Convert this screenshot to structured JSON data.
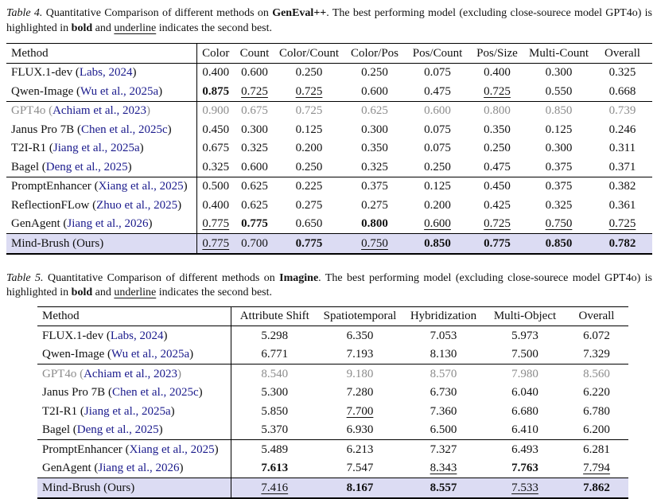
{
  "colors": {
    "citation_blue": "#1a1a8c",
    "muted_gray": "#8c8c8c",
    "highlight_row_bg": "#dcdcf3"
  },
  "table4": {
    "caption": [
      {
        "t": "Table 4.",
        "style": "i"
      },
      {
        "t": " Quantitative Comparison of different methods on ",
        "style": ""
      },
      {
        "t": "GenEval++",
        "style": "b"
      },
      {
        "t": ". The best performing model (excluding close-sourece model GPT4o) is highlighted in ",
        "style": ""
      },
      {
        "t": "bold",
        "style": "b"
      },
      {
        "t": " and ",
        "style": ""
      },
      {
        "t": "underline",
        "style": "u"
      },
      {
        "t": " indicates the second best.",
        "style": ""
      }
    ],
    "method_header": "Method",
    "columns": [
      "Color",
      "Count",
      "Color/Count",
      "Color/Pos",
      "Pos/Count",
      "Pos/Size",
      "Multi-Count",
      "Overall"
    ],
    "cite_wrap": [
      " (",
      ")"
    ],
    "groups": [
      [
        {
          "name": "FLUX.1-dev",
          "cite": "Labs, 2024",
          "gray": false,
          "highlight": false,
          "cells": [
            {
              "v": "0.400",
              "s": ""
            },
            {
              "v": "0.600",
              "s": ""
            },
            {
              "v": "0.250",
              "s": ""
            },
            {
              "v": "0.250",
              "s": ""
            },
            {
              "v": "0.075",
              "s": ""
            },
            {
              "v": "0.400",
              "s": ""
            },
            {
              "v": "0.300",
              "s": ""
            },
            {
              "v": "0.325",
              "s": ""
            }
          ]
        },
        {
          "name": "Qwen-Image",
          "cite": "Wu et al., 2025a",
          "gray": false,
          "highlight": false,
          "cells": [
            {
              "v": "0.875",
              "s": "b"
            },
            {
              "v": "0.725",
              "s": "u"
            },
            {
              "v": "0.725",
              "s": "u"
            },
            {
              "v": "0.600",
              "s": ""
            },
            {
              "v": "0.475",
              "s": ""
            },
            {
              "v": "0.725",
              "s": "u"
            },
            {
              "v": "0.550",
              "s": ""
            },
            {
              "v": "0.668",
              "s": ""
            }
          ]
        }
      ],
      [
        {
          "name": "GPT4o",
          "cite": "Achiam et al., 2023",
          "gray": true,
          "highlight": false,
          "cells": [
            {
              "v": "0.900",
              "s": ""
            },
            {
              "v": "0.675",
              "s": ""
            },
            {
              "v": "0.725",
              "s": ""
            },
            {
              "v": "0.625",
              "s": ""
            },
            {
              "v": "0.600",
              "s": ""
            },
            {
              "v": "0.800",
              "s": ""
            },
            {
              "v": "0.850",
              "s": ""
            },
            {
              "v": "0.739",
              "s": ""
            }
          ]
        },
        {
          "name": "Janus Pro 7B",
          "cite": "Chen et al., 2025c",
          "gray": false,
          "highlight": false,
          "cells": [
            {
              "v": "0.450",
              "s": ""
            },
            {
              "v": "0.300",
              "s": ""
            },
            {
              "v": "0.125",
              "s": ""
            },
            {
              "v": "0.300",
              "s": ""
            },
            {
              "v": "0.075",
              "s": ""
            },
            {
              "v": "0.350",
              "s": ""
            },
            {
              "v": "0.125",
              "s": ""
            },
            {
              "v": "0.246",
              "s": ""
            }
          ]
        },
        {
          "name": "T2I-R1",
          "cite": "Jiang et al., 2025a",
          "gray": false,
          "highlight": false,
          "cells": [
            {
              "v": "0.675",
              "s": ""
            },
            {
              "v": "0.325",
              "s": ""
            },
            {
              "v": "0.200",
              "s": ""
            },
            {
              "v": "0.350",
              "s": ""
            },
            {
              "v": "0.075",
              "s": ""
            },
            {
              "v": "0.250",
              "s": ""
            },
            {
              "v": "0.300",
              "s": ""
            },
            {
              "v": "0.311",
              "s": ""
            }
          ]
        },
        {
          "name": "Bagel",
          "cite": "Deng et al., 2025",
          "gray": false,
          "highlight": false,
          "cells": [
            {
              "v": "0.325",
              "s": ""
            },
            {
              "v": "0.600",
              "s": ""
            },
            {
              "v": "0.250",
              "s": ""
            },
            {
              "v": "0.325",
              "s": ""
            },
            {
              "v": "0.250",
              "s": ""
            },
            {
              "v": "0.475",
              "s": ""
            },
            {
              "v": "0.375",
              "s": ""
            },
            {
              "v": "0.371",
              "s": ""
            }
          ]
        }
      ],
      [
        {
          "name": "PromptEnhancer",
          "cite": "Xiang et al., 2025",
          "gray": false,
          "highlight": false,
          "cells": [
            {
              "v": "0.500",
              "s": ""
            },
            {
              "v": "0.625",
              "s": ""
            },
            {
              "v": "0.225",
              "s": ""
            },
            {
              "v": "0.375",
              "s": ""
            },
            {
              "v": "0.125",
              "s": ""
            },
            {
              "v": "0.450",
              "s": ""
            },
            {
              "v": "0.375",
              "s": ""
            },
            {
              "v": "0.382",
              "s": ""
            }
          ]
        },
        {
          "name": "ReflectionFLow",
          "cite": "Zhuo et al., 2025",
          "gray": false,
          "highlight": false,
          "cells": [
            {
              "v": "0.400",
              "s": ""
            },
            {
              "v": "0.625",
              "s": ""
            },
            {
              "v": "0.275",
              "s": ""
            },
            {
              "v": "0.275",
              "s": ""
            },
            {
              "v": "0.200",
              "s": ""
            },
            {
              "v": "0.425",
              "s": ""
            },
            {
              "v": "0.325",
              "s": ""
            },
            {
              "v": "0.361",
              "s": ""
            }
          ]
        },
        {
          "name": "GenAgent",
          "cite": "Jiang et al., 2026",
          "gray": false,
          "highlight": false,
          "cells": [
            {
              "v": "0.775",
              "s": "u"
            },
            {
              "v": "0.775",
              "s": "b"
            },
            {
              "v": "0.650",
              "s": ""
            },
            {
              "v": "0.800",
              "s": "b"
            },
            {
              "v": "0.600",
              "s": "u"
            },
            {
              "v": "0.725",
              "s": "u"
            },
            {
              "v": "0.750",
              "s": "u"
            },
            {
              "v": "0.725",
              "s": "u"
            }
          ]
        }
      ],
      [
        {
          "name": "Mind-Brush (Ours)",
          "cite": null,
          "gray": false,
          "highlight": true,
          "cells": [
            {
              "v": "0.775",
              "s": "u"
            },
            {
              "v": "0.700",
              "s": ""
            },
            {
              "v": "0.775",
              "s": "b"
            },
            {
              "v": "0.750",
              "s": "u"
            },
            {
              "v": "0.850",
              "s": "b"
            },
            {
              "v": "0.775",
              "s": "b"
            },
            {
              "v": "0.850",
              "s": "b"
            },
            {
              "v": "0.782",
              "s": "b"
            }
          ]
        }
      ]
    ]
  },
  "table5": {
    "caption": [
      {
        "t": "Table 5.",
        "style": "i"
      },
      {
        "t": " Quantitative Comparison of different methods on ",
        "style": ""
      },
      {
        "t": "Imagine",
        "style": "b"
      },
      {
        "t": ". The best performing model (excluding close-sourece model GPT4o) is highlighted in ",
        "style": ""
      },
      {
        "t": "bold",
        "style": "b"
      },
      {
        "t": " and ",
        "style": ""
      },
      {
        "t": "underline",
        "style": "u"
      },
      {
        "t": " indicates the second best.",
        "style": ""
      }
    ],
    "method_header": "Method",
    "columns": [
      "Attribute Shift",
      "Spatiotemporal",
      "Hybridization",
      "Multi-Object",
      "Overall"
    ],
    "cite_wrap": [
      " (",
      ")"
    ],
    "groups": [
      [
        {
          "name": "FLUX.1-dev",
          "cite": "Labs, 2024",
          "gray": false,
          "highlight": false,
          "cells": [
            {
              "v": "5.298",
              "s": ""
            },
            {
              "v": "6.350",
              "s": ""
            },
            {
              "v": "7.053",
              "s": ""
            },
            {
              "v": "5.973",
              "s": ""
            },
            {
              "v": "6.072",
              "s": ""
            }
          ]
        },
        {
          "name": "Qwen-Image",
          "cite": "Wu et al., 2025a",
          "gray": false,
          "highlight": false,
          "cells": [
            {
              "v": "6.771",
              "s": ""
            },
            {
              "v": "7.193",
              "s": ""
            },
            {
              "v": "8.130",
              "s": ""
            },
            {
              "v": "7.500",
              "s": ""
            },
            {
              "v": "7.329",
              "s": ""
            }
          ]
        }
      ],
      [
        {
          "name": "GPT4o",
          "cite": "Achiam et al., 2023",
          "gray": true,
          "highlight": false,
          "cells": [
            {
              "v": "8.540",
              "s": ""
            },
            {
              "v": "9.180",
              "s": ""
            },
            {
              "v": "8.570",
              "s": ""
            },
            {
              "v": "7.980",
              "s": ""
            },
            {
              "v": "8.560",
              "s": ""
            }
          ]
        },
        {
          "name": "Janus Pro 7B",
          "cite": "Chen et al., 2025c",
          "gray": false,
          "highlight": false,
          "cells": [
            {
              "v": "5.300",
              "s": ""
            },
            {
              "v": "7.280",
              "s": ""
            },
            {
              "v": "6.730",
              "s": ""
            },
            {
              "v": "6.040",
              "s": ""
            },
            {
              "v": "6.220",
              "s": ""
            }
          ]
        },
        {
          "name": "T2I-R1",
          "cite": "Jiang et al., 2025a",
          "gray": false,
          "highlight": false,
          "cells": [
            {
              "v": "5.850",
              "s": ""
            },
            {
              "v": "7.700",
              "s": "u"
            },
            {
              "v": "7.360",
              "s": ""
            },
            {
              "v": "6.680",
              "s": ""
            },
            {
              "v": "6.780",
              "s": ""
            }
          ]
        },
        {
          "name": "Bagel",
          "cite": "Deng et al., 2025",
          "gray": false,
          "highlight": false,
          "cells": [
            {
              "v": "5.370",
              "s": ""
            },
            {
              "v": "6.930",
              "s": ""
            },
            {
              "v": "6.500",
              "s": ""
            },
            {
              "v": "6.410",
              "s": ""
            },
            {
              "v": "6.200",
              "s": ""
            }
          ]
        }
      ],
      [
        {
          "name": "PromptEnhancer",
          "cite": "Xiang et al., 2025",
          "gray": false,
          "highlight": false,
          "cells": [
            {
              "v": "5.489",
              "s": ""
            },
            {
              "v": "6.213",
              "s": ""
            },
            {
              "v": "7.327",
              "s": ""
            },
            {
              "v": "6.493",
              "s": ""
            },
            {
              "v": "6.281",
              "s": ""
            }
          ]
        },
        {
          "name": "GenAgent",
          "cite": "Jiang et al., 2026",
          "gray": false,
          "highlight": false,
          "cells": [
            {
              "v": "7.613",
              "s": "b"
            },
            {
              "v": "7.547",
              "s": ""
            },
            {
              "v": "8.343",
              "s": "u"
            },
            {
              "v": "7.763",
              "s": "b"
            },
            {
              "v": "7.794",
              "s": "u"
            }
          ]
        }
      ],
      [
        {
          "name": "Mind-Brush (Ours)",
          "cite": null,
          "gray": false,
          "highlight": true,
          "cells": [
            {
              "v": "7.416",
              "s": "u"
            },
            {
              "v": "8.167",
              "s": "b"
            },
            {
              "v": "8.557",
              "s": "b"
            },
            {
              "v": "7.533",
              "s": "u"
            },
            {
              "v": "7.862",
              "s": "b"
            }
          ]
        }
      ]
    ]
  }
}
